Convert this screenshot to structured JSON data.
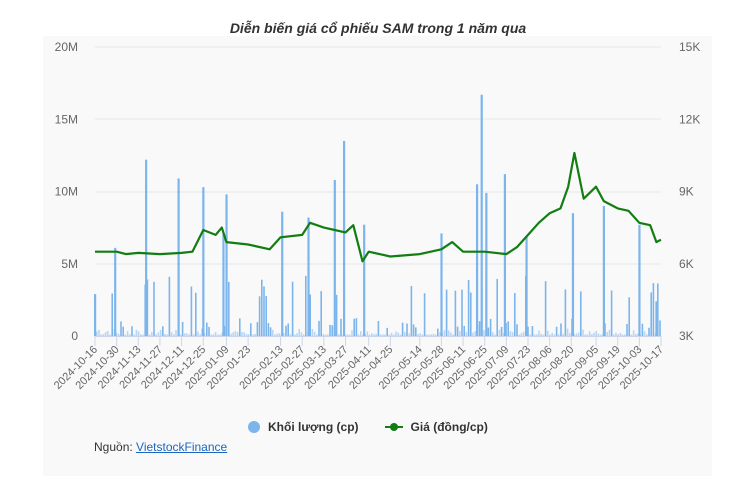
{
  "title": "Diễn biến giá cổ phiếu SAM trong 1 năm qua",
  "legend": {
    "volume_label": "Khối lượng (cp)",
    "price_label": "Giá (đồng/cp)"
  },
  "source": {
    "prefix": "Nguồn: ",
    "link_text": "VietstockFinance"
  },
  "colors": {
    "volume": "#7cb5ec",
    "price": "#127d13",
    "panel_bg": "#f9f9f9",
    "grid": "#e6e6e6"
  },
  "chart_data": {
    "type": "bar+line",
    "title": "Diễn biến giá cổ phiếu SAM trong 1 năm qua",
    "xlabel": "",
    "ylabel_left": "Khối lượng (cp)",
    "ylabel_right": "Giá (đồng/cp)",
    "y_left_ticks": [
      "0",
      "5M",
      "10M",
      "15M",
      "20M"
    ],
    "y_left_range": [
      0,
      20000000
    ],
    "y_right_ticks": [
      "3K",
      "6K",
      "9K",
      "12K",
      "15K"
    ],
    "y_right_range": [
      3000,
      15000
    ],
    "x_ticks": [
      "2024-10-16",
      "2024-10-30",
      "2024-11-13",
      "2024-11-27",
      "2024-12-11",
      "2024-12-25",
      "2025-01-09",
      "2025-01-23",
      "2025-02-13",
      "2025-02-27",
      "2025-03-13",
      "2025-03-27",
      "2025-04-11",
      "2025-04-25",
      "2025-05-14",
      "2025-05-28",
      "2025-06-11",
      "2025-06-25",
      "2025-07-09",
      "2025-07-23",
      "2025-08-06",
      "2025-08-20",
      "2025-09-05",
      "2025-09-19",
      "2025-10-03",
      "2025-10-17"
    ],
    "grid": true,
    "legend_position": "bottom",
    "series": [
      {
        "name": "Giá (đồng/cp)",
        "type": "line",
        "axis": "right",
        "points": [
          [
            "2024-10-16",
            6500
          ],
          [
            "2024-10-30",
            6500
          ],
          [
            "2024-11-05",
            6400
          ],
          [
            "2024-11-13",
            6450
          ],
          [
            "2024-11-27",
            6400
          ],
          [
            "2024-12-11",
            6450
          ],
          [
            "2024-12-18",
            6500
          ],
          [
            "2024-12-25",
            7400
          ],
          [
            "2025-01-02",
            7200
          ],
          [
            "2025-01-06",
            7500
          ],
          [
            "2025-01-09",
            6900
          ],
          [
            "2025-01-23",
            6800
          ],
          [
            "2025-02-06",
            6600
          ],
          [
            "2025-02-13",
            7100
          ],
          [
            "2025-02-27",
            7200
          ],
          [
            "2025-03-04",
            7700
          ],
          [
            "2025-03-13",
            7500
          ],
          [
            "2025-03-20",
            7400
          ],
          [
            "2025-03-27",
            7300
          ],
          [
            "2025-04-01",
            7600
          ],
          [
            "2025-04-07",
            6100
          ],
          [
            "2025-04-11",
            6500
          ],
          [
            "2025-04-25",
            6300
          ],
          [
            "2025-05-14",
            6400
          ],
          [
            "2025-05-28",
            6600
          ],
          [
            "2025-06-04",
            6900
          ],
          [
            "2025-06-11",
            6500
          ],
          [
            "2025-06-25",
            6500
          ],
          [
            "2025-07-09",
            6400
          ],
          [
            "2025-07-16",
            6700
          ],
          [
            "2025-07-23",
            7200
          ],
          [
            "2025-07-30",
            7700
          ],
          [
            "2025-08-06",
            8100
          ],
          [
            "2025-08-13",
            8300
          ],
          [
            "2025-08-18",
            9200
          ],
          [
            "2025-08-22",
            10600
          ],
          [
            "2025-08-28",
            8700
          ],
          [
            "2025-09-05",
            9200
          ],
          [
            "2025-09-10",
            8600
          ],
          [
            "2025-09-19",
            8300
          ],
          [
            "2025-09-26",
            8200
          ],
          [
            "2025-10-03",
            7700
          ],
          [
            "2025-10-10",
            7600
          ],
          [
            "2025-10-14",
            6900
          ],
          [
            "2025-10-17",
            7000
          ]
        ]
      },
      {
        "name": "Khối lượng (cp)",
        "type": "bar",
        "axis": "left",
        "notable_peaks": [
          [
            "2024-10-16",
            2900000
          ],
          [
            "2024-10-29",
            6100000
          ],
          [
            "2024-11-18",
            12200000
          ],
          [
            "2024-12-09",
            10900000
          ],
          [
            "2024-12-25",
            10300000
          ],
          [
            "2025-01-07",
            7100000
          ],
          [
            "2025-01-09",
            9800000
          ],
          [
            "2025-02-14",
            8600000
          ],
          [
            "2025-03-03",
            8200000
          ],
          [
            "2025-03-20",
            10800000
          ],
          [
            "2025-03-26",
            13500000
          ],
          [
            "2025-04-08",
            7700000
          ],
          [
            "2025-05-28",
            7100000
          ],
          [
            "2025-06-20",
            10500000
          ],
          [
            "2025-06-23",
            16700000
          ],
          [
            "2025-06-26",
            9900000
          ],
          [
            "2025-07-08",
            11200000
          ],
          [
            "2025-07-22",
            6900000
          ],
          [
            "2025-08-21",
            8500000
          ],
          [
            "2025-09-10",
            9000000
          ],
          [
            "2025-10-03",
            7700000
          ],
          [
            "2025-10-14",
            2400000
          ]
        ],
        "typical_range": [
          100000,
          2000000
        ]
      }
    ]
  }
}
